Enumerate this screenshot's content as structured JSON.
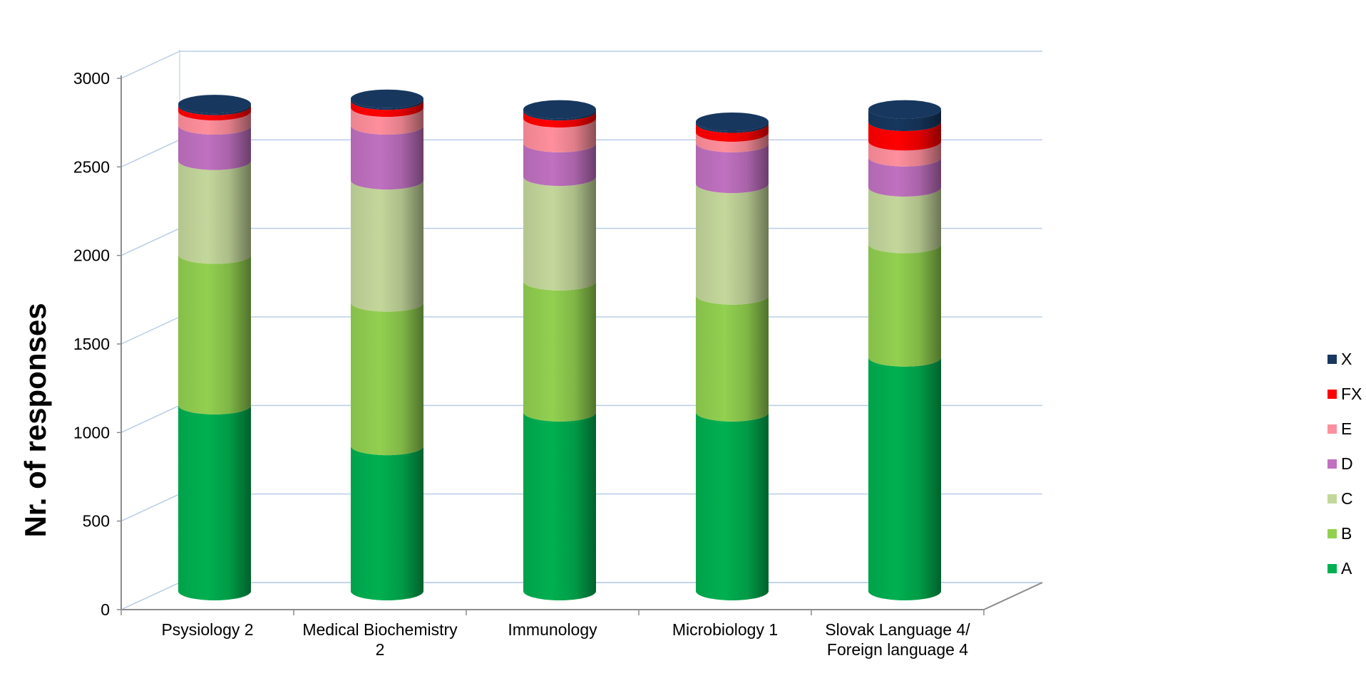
{
  "chart_data": {
    "type": "bar",
    "stacked": true,
    "style": "3d-cylinder",
    "title": "",
    "xlabel": "",
    "ylabel": "Nr. of responses",
    "ylim": [
      0,
      3000
    ],
    "yticks": [
      0,
      500,
      1000,
      1500,
      2000,
      2500,
      3000
    ],
    "grid": true,
    "legend_position": "right",
    "categories": [
      [
        "Psysiology 2"
      ],
      [
        "Medical Biochemistry",
        "2"
      ],
      [
        "Immunology"
      ],
      [
        "Microbiology 1"
      ],
      [
        "Slovak Language 4/",
        "Foreign language 4"
      ]
    ],
    "series": [
      {
        "name": "A",
        "color": "#00b050",
        "values": [
          1050,
          820,
          1010,
          1010,
          1320
        ]
      },
      {
        "name": "B",
        "color": "#92d050",
        "values": [
          850,
          810,
          740,
          660,
          640
        ]
      },
      {
        "name": "C",
        "color": "#c4d79b",
        "values": [
          530,
          690,
          590,
          630,
          320
        ]
      },
      {
        "name": "D",
        "color": "#c071c0",
        "values": [
          200,
          310,
          190,
          230,
          170
        ]
      },
      {
        "name": "E",
        "color": "#ff8f9d",
        "values": [
          80,
          100,
          140,
          60,
          90
        ]
      },
      {
        "name": "FX",
        "color": "#ff0000",
        "values": [
          30,
          40,
          40,
          50,
          110
        ]
      },
      {
        "name": "X",
        "color": "#17375e",
        "values": [
          10,
          10,
          10,
          10,
          70
        ]
      }
    ]
  }
}
